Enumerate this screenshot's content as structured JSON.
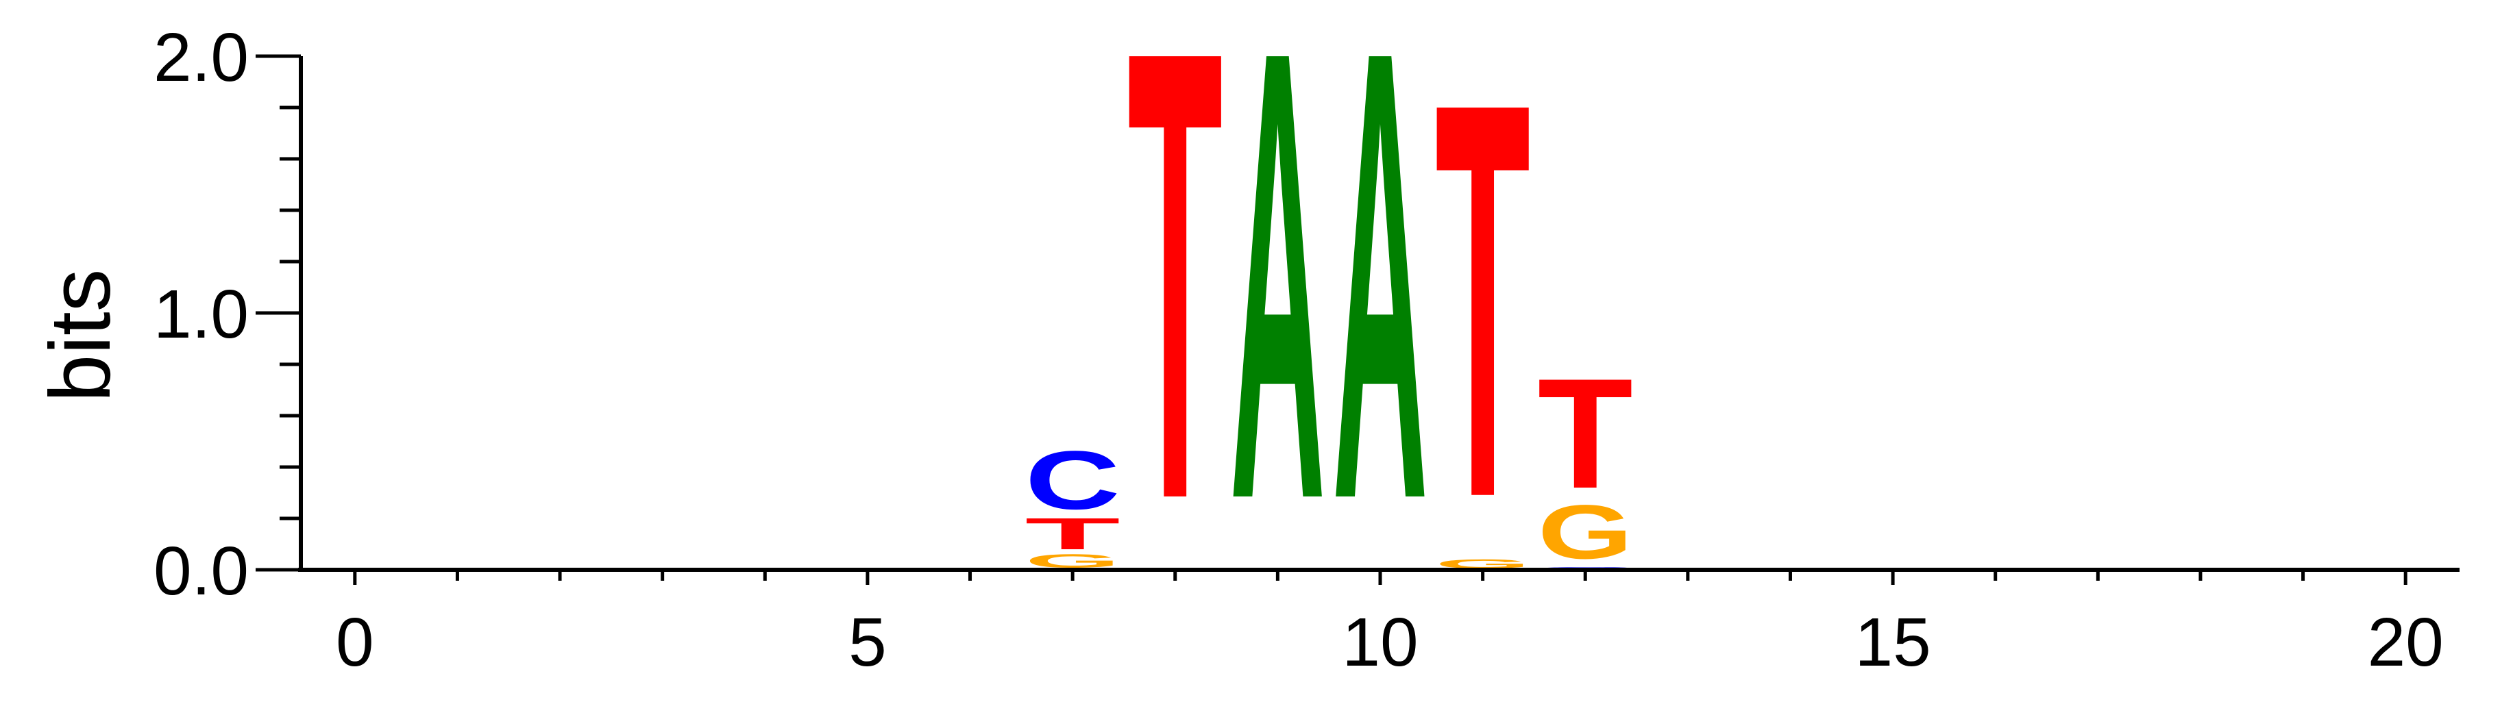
{
  "chart_data": {
    "type": "sequence-logo",
    "ylabel": "bits",
    "xlabel": "",
    "title": "",
    "xlim": [
      -0.5,
      20.5
    ],
    "ylim": [
      0,
      2
    ],
    "x_ticks": [
      0,
      5,
      10,
      15,
      20
    ],
    "x_tick_labels": [
      "0",
      "5",
      "10",
      "15",
      "20"
    ],
    "y_ticks": [
      0,
      1,
      2
    ],
    "y_tick_labels": [
      "0.0",
      "1.0",
      "2.0"
    ],
    "grid": false,
    "colors": {
      "A": "#008000",
      "C": "#0000ff",
      "G": "#ffa500",
      "T": "#ff0000"
    },
    "positions": [
      {
        "x": 7,
        "stack": [
          {
            "letter": "G",
            "bits": 0.06
          },
          {
            "letter": "T",
            "bits": 0.14
          },
          {
            "letter": "C",
            "bits": 0.26
          }
        ]
      },
      {
        "x": 8,
        "stack": [
          {
            "letter": "T",
            "bits": 2.0
          }
        ]
      },
      {
        "x": 9,
        "stack": [
          {
            "letter": "A",
            "bits": 2.0
          }
        ]
      },
      {
        "x": 10,
        "stack": [
          {
            "letter": "A",
            "bits": 2.0
          }
        ]
      },
      {
        "x": 11,
        "stack": [
          {
            "letter": "G",
            "bits": 0.04
          },
          {
            "letter": "T",
            "bits": 1.76
          }
        ]
      },
      {
        "x": 12,
        "stack": [
          {
            "letter": "C",
            "bits": 0.01
          },
          {
            "letter": "G",
            "bits": 0.24
          },
          {
            "letter": "T",
            "bits": 0.49
          }
        ]
      }
    ]
  }
}
